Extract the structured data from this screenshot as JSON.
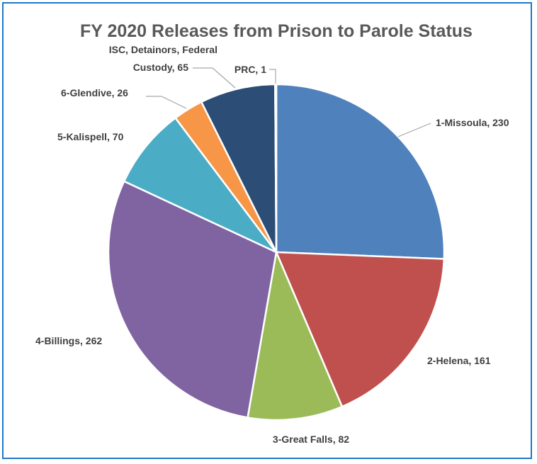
{
  "chart_data": {
    "type": "pie",
    "title": "FY 2020 Releases from Prison to Parole Status",
    "series": [
      {
        "name": "",
        "categories": [
          "1-Missoula",
          "2-Helena",
          "3-Great Falls",
          "4-Billings",
          "5-Kalispell",
          "6-Glendive",
          "ISC, Detainors, Federal Custody",
          "PRC"
        ],
        "values": [
          230,
          161,
          82,
          262,
          70,
          26,
          65,
          1
        ],
        "labels": [
          "1-Missoula, 230",
          "2-Helena, 161",
          "3-Great Falls, 82",
          "4-Billings, 262",
          "5-Kalispell, 70",
          "6-Glendive, 26",
          "ISC, Detainors, Federal Custody, 65",
          "PRC, 1"
        ],
        "colors": [
          "#4f81bd",
          "#c0504d",
          "#9bbb59",
          "#8064a2",
          "#4bacc6",
          "#f79646",
          "#2c4d75",
          "#7f7f7f"
        ]
      }
    ],
    "legend": "none",
    "start_angle_deg": 0,
    "direction": "clockwise"
  }
}
